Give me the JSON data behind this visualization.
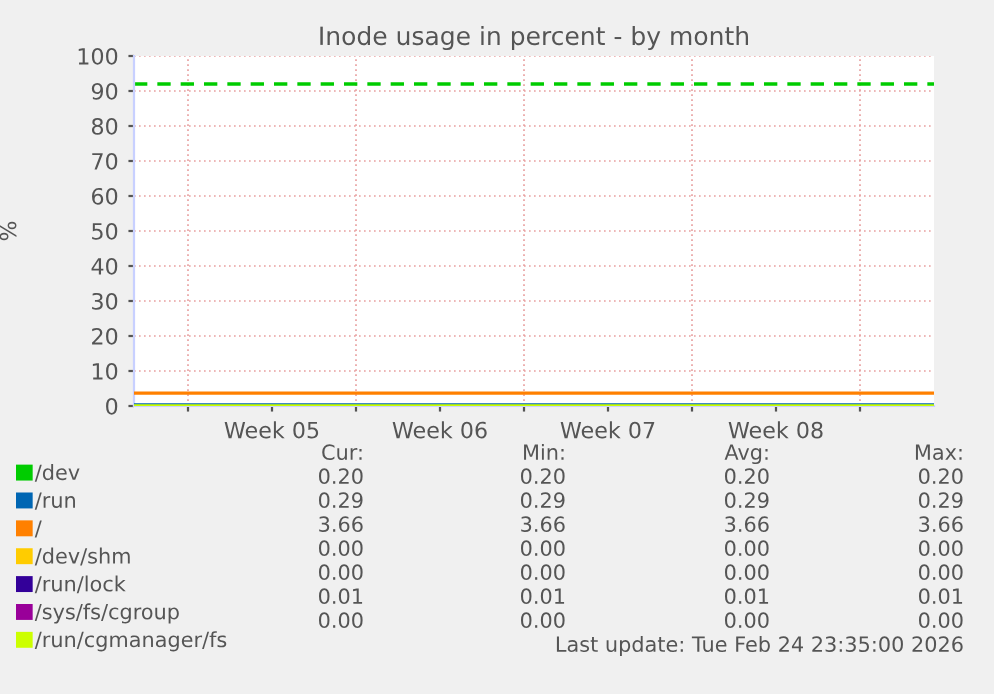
{
  "chart_data": {
    "type": "line",
    "title": "Inode usage in percent - by month",
    "ylabel": "%",
    "x": [
      "2026-01-23T18:00",
      "2026-02-26T02:00"
    ],
    "xlim": [
      "2026-01-23T18:00",
      "2026-02-26T02:00"
    ],
    "xticks": [
      {
        "value": "2026-01-26",
        "label": null
      },
      {
        "value": "2026-01-29T12:00",
        "label": "Week 05"
      },
      {
        "value": "2026-02-02",
        "label": null
      },
      {
        "value": "2026-02-05T12:00",
        "label": "Week 06"
      },
      {
        "value": "2026-02-09",
        "label": null
      },
      {
        "value": "2026-02-12T12:00",
        "label": "Week 07"
      },
      {
        "value": "2026-02-16",
        "label": null
      },
      {
        "value": "2026-02-19T12:00",
        "label": "Week 08"
      },
      {
        "value": "2026-02-23",
        "label": null
      }
    ],
    "ylim": [
      0,
      100
    ],
    "yticks": [
      0,
      10,
      20,
      30,
      40,
      50,
      60,
      70,
      80,
      90,
      100
    ],
    "grid": true,
    "legend": "bottom left",
    "line_style": "solid",
    "marker": "none",
    "series": [
      {
        "name": "/dev",
        "color": "#00cc00",
        "values": [
          null,
          null
        ]
      },
      {
        "name": "/run",
        "color": "#0066b3",
        "values": [
          0.29,
          0.29
        ]
      },
      {
        "name": "/",
        "color": "#ff8000",
        "values": [
          3.66,
          3.66
        ]
      },
      {
        "name": "/dev/shm",
        "color": "#ffcc00",
        "values": [
          null,
          null
        ]
      },
      {
        "name": "/run/lock",
        "color": "#330099",
        "values": [
          null,
          null
        ]
      },
      {
        "name": "/sys/fs/cgroup",
        "color": "#990099",
        "values": [
          null,
          null
        ]
      },
      {
        "name": "/run/cgmanager/fs",
        "color": "#ccff00",
        "values": [
          0,
          0
        ]
      }
    ],
    "ref_lines": [
      {
        "axis": "y",
        "value": 92,
        "color": "#00cc00",
        "line_style": "dashed"
      }
    ],
    "annotations": [
      "Cur:",
      "Min:",
      "Avg:",
      "Max:",
      "0.20",
      "0.20",
      "0.20",
      "0.20",
      "0.29",
      "0.29",
      "0.29",
      "0.29",
      "3.66",
      "3.66",
      "3.66",
      "3.66",
      "0.00",
      "0.00",
      "0.00",
      "0.00",
      "0.00",
      "0.00",
      "0.00",
      "0.00",
      "0.01",
      "0.01",
      "0.01",
      "0.01",
      "0.00",
      "0.00",
      "0.00",
      "0.00",
      "Last update: Tue Feb 24 23:35:00 2026"
    ]
  }
}
